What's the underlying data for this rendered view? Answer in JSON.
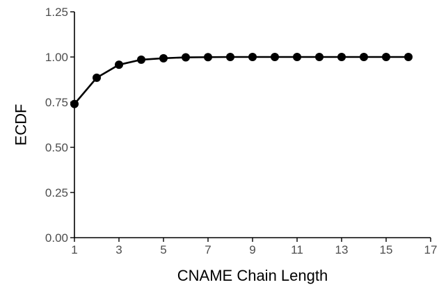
{
  "chart_data": {
    "type": "line",
    "xlabel": "CNAME Chain Length",
    "ylabel": "ECDF",
    "xlim": [
      1,
      17
    ],
    "ylim": [
      0,
      1.25
    ],
    "xticks": [
      1,
      3,
      5,
      7,
      9,
      11,
      13,
      15,
      17
    ],
    "yticks": [
      0,
      0.25,
      0.5,
      0.75,
      1.0,
      1.25
    ],
    "xtick_labels": [
      "1",
      "3",
      "5",
      "7",
      "9",
      "11",
      "13",
      "15",
      "17"
    ],
    "ytick_labels": [
      "0.00",
      "0.25",
      "0.50",
      "0.75",
      "1.00",
      "1.25"
    ],
    "grid": false,
    "series": [
      {
        "color": "#000000",
        "x": [
          1,
          2,
          3,
          4,
          5,
          6,
          7,
          8,
          9,
          10,
          11,
          12,
          13,
          14,
          15,
          16
        ],
        "y": [
          0.74,
          0.885,
          0.957,
          0.985,
          0.993,
          0.998,
          0.999,
          1.0,
          1.0,
          1.0,
          1.0,
          1.0,
          1.0,
          1.0,
          1.0,
          1.0
        ]
      }
    ]
  }
}
